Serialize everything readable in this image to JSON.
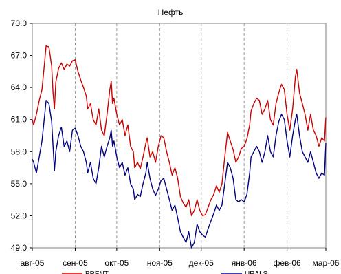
{
  "chart_data": {
    "type": "line",
    "title": "Нефть",
    "xlabel": "",
    "ylabel": "",
    "ylim": [
      49.0,
      70.0
    ],
    "y_ticks": [
      49.0,
      52.0,
      55.0,
      58.0,
      61.0,
      64.0,
      67.0,
      70.0
    ],
    "y_tick_labels": [
      "49.0",
      "52.0",
      "55.0",
      "58.0",
      "61.0",
      "64.0",
      "67.0",
      "70.0"
    ],
    "x_domain": [
      "2005-08-01",
      "2006-03-01"
    ],
    "x_ticks": [
      "2005-08-01",
      "2005-09-01",
      "2005-10-01",
      "2005-11-01",
      "2005-12-01",
      "2006-01-01",
      "2006-02-01",
      "2006-03-01"
    ],
    "x_tick_labels": [
      "авг-05",
      "сен-05",
      "окт-05",
      "ноя-05",
      "дек-05",
      "янв-06",
      "фев-06",
      "мар-06"
    ],
    "grid": "vertical dashed at month ticks",
    "legend": "bottom",
    "series": [
      {
        "name": "BRENT",
        "color": "#cc0000",
        "points": [
          [
            "2005-08-01",
            61.0
          ],
          [
            "2005-08-02",
            60.5
          ],
          [
            "2005-08-04",
            61.5
          ],
          [
            "2005-08-06",
            62.8
          ],
          [
            "2005-08-08",
            63.8
          ],
          [
            "2005-08-10",
            66.5
          ],
          [
            "2005-08-11",
            67.9
          ],
          [
            "2005-08-13",
            67.8
          ],
          [
            "2005-08-15",
            66.0
          ],
          [
            "2005-08-16",
            63.5
          ],
          [
            "2005-08-17",
            62.0
          ],
          [
            "2005-08-18",
            64.5
          ],
          [
            "2005-08-20",
            65.8
          ],
          [
            "2005-08-22",
            66.3
          ],
          [
            "2005-08-24",
            65.7
          ],
          [
            "2005-08-26",
            66.2
          ],
          [
            "2005-08-28",
            66.0
          ],
          [
            "2005-08-30",
            66.5
          ],
          [
            "2005-09-01",
            66.6
          ],
          [
            "2005-09-03",
            65.5
          ],
          [
            "2005-09-05",
            64.7
          ],
          [
            "2005-09-07",
            64.0
          ],
          [
            "2005-09-09",
            63.2
          ],
          [
            "2005-09-10",
            62.0
          ],
          [
            "2005-09-12",
            62.5
          ],
          [
            "2005-09-14",
            61.0
          ],
          [
            "2005-09-16",
            60.5
          ],
          [
            "2005-09-18",
            62.0
          ],
          [
            "2005-09-20",
            60.0
          ],
          [
            "2005-09-22",
            59.5
          ],
          [
            "2005-09-24",
            61.5
          ],
          [
            "2005-09-26",
            63.8
          ],
          [
            "2005-09-27",
            64.6
          ],
          [
            "2005-09-28",
            62.5
          ],
          [
            "2005-09-29",
            63.0
          ],
          [
            "2005-10-01",
            61.5
          ],
          [
            "2005-10-03",
            60.5
          ],
          [
            "2005-10-05",
            61.0
          ],
          [
            "2005-10-07",
            59.5
          ],
          [
            "2005-10-09",
            60.5
          ],
          [
            "2005-10-11",
            58.5
          ],
          [
            "2005-10-13",
            58.0
          ],
          [
            "2005-10-14",
            56.5
          ],
          [
            "2005-10-16",
            57.0
          ],
          [
            "2005-10-18",
            56.4
          ],
          [
            "2005-10-20",
            57.5
          ],
          [
            "2005-10-22",
            58.8
          ],
          [
            "2005-10-23",
            59.3
          ],
          [
            "2005-10-25",
            57.5
          ],
          [
            "2005-10-27",
            58.0
          ],
          [
            "2005-10-29",
            57.0
          ],
          [
            "2005-10-31",
            58.5
          ],
          [
            "2005-11-02",
            59.5
          ],
          [
            "2005-11-04",
            59.3
          ],
          [
            "2005-11-06",
            58.0
          ],
          [
            "2005-11-08",
            57.0
          ],
          [
            "2005-11-10",
            55.8
          ],
          [
            "2005-11-12",
            56.5
          ],
          [
            "2005-11-14",
            55.5
          ],
          [
            "2005-11-16",
            53.8
          ],
          [
            "2005-11-18",
            53.2
          ],
          [
            "2005-11-20",
            52.8
          ],
          [
            "2005-11-22",
            53.5
          ],
          [
            "2005-11-24",
            52.0
          ],
          [
            "2005-11-26",
            52.5
          ],
          [
            "2005-11-28",
            53.5
          ],
          [
            "2005-11-30",
            52.5
          ],
          [
            "2005-12-02",
            52.0
          ],
          [
            "2005-12-04",
            52.1
          ],
          [
            "2005-12-06",
            52.8
          ],
          [
            "2005-12-08",
            53.5
          ],
          [
            "2005-12-10",
            54.0
          ],
          [
            "2005-12-12",
            54.8
          ],
          [
            "2005-12-14",
            54.2
          ],
          [
            "2005-12-16",
            55.0
          ],
          [
            "2005-12-18",
            57.5
          ],
          [
            "2005-12-20",
            59.8
          ],
          [
            "2005-12-22",
            59.0
          ],
          [
            "2005-12-24",
            58.2
          ],
          [
            "2005-12-26",
            57.0
          ],
          [
            "2005-12-28",
            57.5
          ],
          [
            "2005-12-30",
            58.3
          ],
          [
            "2006-01-01",
            58.5
          ],
          [
            "2006-01-03",
            59.2
          ],
          [
            "2006-01-05",
            60.5
          ],
          [
            "2006-01-06",
            61.8
          ],
          [
            "2006-01-08",
            62.5
          ],
          [
            "2006-01-10",
            63.0
          ],
          [
            "2006-01-12",
            62.8
          ],
          [
            "2006-01-14",
            61.5
          ],
          [
            "2006-01-16",
            62.0
          ],
          [
            "2006-01-18",
            62.8
          ],
          [
            "2006-01-20",
            61.0
          ],
          [
            "2006-01-22",
            60.5
          ],
          [
            "2006-01-24",
            62.5
          ],
          [
            "2006-01-26",
            63.5
          ],
          [
            "2006-01-28",
            64.3
          ],
          [
            "2006-01-30",
            63.8
          ],
          [
            "2006-02-01",
            61.5
          ],
          [
            "2006-02-03",
            60.0
          ],
          [
            "2006-02-05",
            62.0
          ],
          [
            "2006-02-07",
            65.0
          ],
          [
            "2006-02-08",
            65.7
          ],
          [
            "2006-02-10",
            63.5
          ],
          [
            "2006-02-12",
            62.5
          ],
          [
            "2006-02-14",
            61.5
          ],
          [
            "2006-02-16",
            60.0
          ],
          [
            "2006-02-18",
            61.5
          ],
          [
            "2006-02-20",
            60.0
          ],
          [
            "2006-02-22",
            59.5
          ],
          [
            "2006-02-24",
            58.5
          ],
          [
            "2006-02-26",
            59.3
          ],
          [
            "2006-02-28",
            59.0
          ],
          [
            "2006-03-01",
            61.2
          ]
        ]
      },
      {
        "name": "URALS",
        "color": "#000080",
        "points": [
          [
            "2005-08-01",
            57.3
          ],
          [
            "2005-08-02",
            57.0
          ],
          [
            "2005-08-04",
            56.0
          ],
          [
            "2005-08-06",
            57.5
          ],
          [
            "2005-08-08",
            59.0
          ],
          [
            "2005-08-10",
            61.5
          ],
          [
            "2005-08-11",
            62.8
          ],
          [
            "2005-08-13",
            62.5
          ],
          [
            "2005-08-15",
            60.8
          ],
          [
            "2005-08-16",
            58.5
          ],
          [
            "2005-08-17",
            56.2
          ],
          [
            "2005-08-18",
            58.0
          ],
          [
            "2005-08-20",
            59.5
          ],
          [
            "2005-08-22",
            60.3
          ],
          [
            "2005-08-24",
            58.5
          ],
          [
            "2005-08-26",
            59.0
          ],
          [
            "2005-08-28",
            58.0
          ],
          [
            "2005-08-30",
            60.0
          ],
          [
            "2005-09-01",
            60.2
          ],
          [
            "2005-09-03",
            59.5
          ],
          [
            "2005-09-05",
            58.5
          ],
          [
            "2005-09-07",
            58.0
          ],
          [
            "2005-09-09",
            57.0
          ],
          [
            "2005-09-10",
            56.0
          ],
          [
            "2005-09-12",
            57.0
          ],
          [
            "2005-09-14",
            55.5
          ],
          [
            "2005-09-16",
            55.0
          ],
          [
            "2005-09-18",
            56.5
          ],
          [
            "2005-09-20",
            58.5
          ],
          [
            "2005-09-22",
            57.5
          ],
          [
            "2005-09-24",
            58.5
          ],
          [
            "2005-09-26",
            59.3
          ],
          [
            "2005-09-27",
            60.0
          ],
          [
            "2005-09-28",
            58.5
          ],
          [
            "2005-09-29",
            59.0
          ],
          [
            "2005-10-01",
            57.5
          ],
          [
            "2005-10-03",
            56.5
          ],
          [
            "2005-10-05",
            57.0
          ],
          [
            "2005-10-07",
            55.8
          ],
          [
            "2005-10-09",
            56.5
          ],
          [
            "2005-10-11",
            55.0
          ],
          [
            "2005-10-13",
            54.5
          ],
          [
            "2005-10-14",
            53.5
          ],
          [
            "2005-10-16",
            54.0
          ],
          [
            "2005-10-18",
            53.8
          ],
          [
            "2005-10-20",
            55.0
          ],
          [
            "2005-10-22",
            56.0
          ],
          [
            "2005-10-23",
            57.0
          ],
          [
            "2005-10-25",
            55.5
          ],
          [
            "2005-10-27",
            54.5
          ],
          [
            "2005-10-29",
            53.9
          ],
          [
            "2005-10-31",
            54.5
          ],
          [
            "2005-11-02",
            55.3
          ],
          [
            "2005-11-04",
            55.5
          ],
          [
            "2005-11-06",
            54.5
          ],
          [
            "2005-11-08",
            53.5
          ],
          [
            "2005-11-10",
            52.5
          ],
          [
            "2005-11-12",
            53.0
          ],
          [
            "2005-11-14",
            51.8
          ],
          [
            "2005-11-16",
            50.5
          ],
          [
            "2005-11-18",
            50.0
          ],
          [
            "2005-11-20",
            49.5
          ],
          [
            "2005-11-22",
            50.5
          ],
          [
            "2005-11-24",
            49.0
          ],
          [
            "2005-11-26",
            49.5
          ],
          [
            "2005-11-28",
            51.2
          ],
          [
            "2005-11-30",
            50.5
          ],
          [
            "2005-12-02",
            50.2
          ],
          [
            "2005-12-04",
            50.0
          ],
          [
            "2005-12-06",
            50.8
          ],
          [
            "2005-12-08",
            51.5
          ],
          [
            "2005-12-10",
            52.2
          ],
          [
            "2005-12-12",
            53.0
          ],
          [
            "2005-12-14",
            52.5
          ],
          [
            "2005-12-16",
            53.0
          ],
          [
            "2005-12-18",
            55.0
          ],
          [
            "2005-12-20",
            57.0
          ],
          [
            "2005-12-22",
            56.5
          ],
          [
            "2005-12-24",
            55.5
          ],
          [
            "2005-12-26",
            53.5
          ],
          [
            "2005-12-28",
            53.3
          ],
          [
            "2005-12-30",
            53.5
          ],
          [
            "2006-01-01",
            53.3
          ],
          [
            "2006-01-03",
            54.0
          ],
          [
            "2006-01-05",
            56.0
          ],
          [
            "2006-01-06",
            57.5
          ],
          [
            "2006-01-08",
            58.0
          ],
          [
            "2006-01-10",
            58.5
          ],
          [
            "2006-01-12",
            58.0
          ],
          [
            "2006-01-14",
            57.0
          ],
          [
            "2006-01-16",
            58.0
          ],
          [
            "2006-01-18",
            59.5
          ],
          [
            "2006-01-20",
            58.0
          ],
          [
            "2006-01-22",
            57.5
          ],
          [
            "2006-01-24",
            59.5
          ],
          [
            "2006-01-26",
            60.8
          ],
          [
            "2006-01-28",
            61.5
          ],
          [
            "2006-01-30",
            61.0
          ],
          [
            "2006-02-01",
            59.0
          ],
          [
            "2006-02-03",
            57.5
          ],
          [
            "2006-02-05",
            59.5
          ],
          [
            "2006-02-07",
            61.0
          ],
          [
            "2006-02-08",
            61.5
          ],
          [
            "2006-02-10",
            59.5
          ],
          [
            "2006-02-12",
            58.0
          ],
          [
            "2006-02-14",
            57.5
          ],
          [
            "2006-02-16",
            57.0
          ],
          [
            "2006-02-18",
            58.0
          ],
          [
            "2006-02-20",
            57.0
          ],
          [
            "2006-02-22",
            56.0
          ],
          [
            "2006-02-24",
            55.5
          ],
          [
            "2006-02-26",
            56.0
          ],
          [
            "2006-02-28",
            55.8
          ],
          [
            "2006-03-01",
            58.8
          ]
        ]
      }
    ]
  }
}
